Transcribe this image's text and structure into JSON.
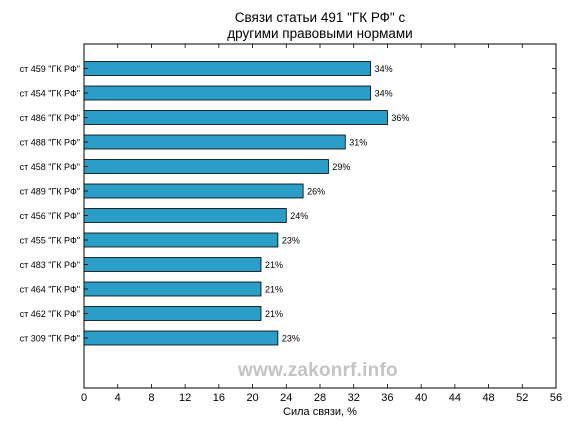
{
  "watermark": "www.zakonrf.info",
  "chart_data": {
    "type": "bar",
    "orientation": "horizontal",
    "title": [
      "Связи статьи 491 \"ГК РФ\" с",
      "другими правовыми нормами"
    ],
    "xlabel": "Сила связи, %",
    "ylabel": "",
    "xlim": [
      0,
      56
    ],
    "xticks": [
      0,
      4,
      8,
      12,
      16,
      20,
      24,
      28,
      32,
      36,
      40,
      44,
      48,
      52,
      56
    ],
    "grid": false,
    "bar_color": "#2b9ec8",
    "categories": [
      "ст 459 \"ГК РФ\"",
      "ст 454 \"ГК РФ\"",
      "ст 486 \"ГК РФ\"",
      "ст 488 \"ГК РФ\"",
      "ст 458 \"ГК РФ\"",
      "ст 489 \"ГК РФ\"",
      "ст 456 \"ГК РФ\"",
      "ст 455 \"ГК РФ\"",
      "ст 483 \"ГК РФ\"",
      "ст 464 \"ГК РФ\"",
      "ст 462 \"ГК РФ\"",
      "ст 309 \"ГК РФ\""
    ],
    "values": [
      34,
      34,
      36,
      31,
      29,
      26,
      24,
      23,
      21,
      21,
      21,
      23
    ],
    "value_labels": [
      "34%",
      "34%",
      "36%",
      "31%",
      "29%",
      "26%",
      "24%",
      "23%",
      "21%",
      "21%",
      "21%",
      "23%"
    ]
  }
}
